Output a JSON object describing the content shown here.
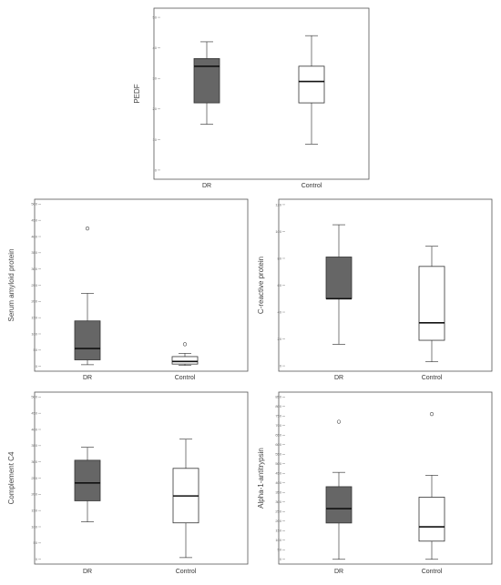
{
  "chart_data": [
    {
      "type": "boxplot",
      "ylabel": "PEDF",
      "categories": [
        "DR",
        "Control"
      ],
      "yticks": [
        0,
        10,
        20,
        30,
        40,
        50
      ],
      "ylim": [
        -3,
        53
      ],
      "series": [
        {
          "category": "DR",
          "min": 15,
          "q1": 22,
          "median": 34,
          "q3": 36.5,
          "max": 42,
          "outliers": [],
          "fill": "#666666"
        },
        {
          "category": "Control",
          "min": 8.5,
          "q1": 22,
          "median": 29,
          "q3": 34,
          "max": 44,
          "outliers": [],
          "fill": "#ffffff"
        }
      ]
    },
    {
      "type": "boxplot",
      "ylabel": "Serum amyloid protein",
      "categories": [
        "DR",
        "Control"
      ],
      "yticks": [
        0,
        50,
        100,
        150,
        200,
        250,
        300,
        350,
        400,
        450,
        500
      ],
      "ylim": [
        -15,
        515
      ],
      "series": [
        {
          "category": "DR",
          "min": 5,
          "q1": 20,
          "median": 55,
          "q3": 140,
          "max": 225,
          "outliers": [
            425
          ],
          "fill": "#666666"
        },
        {
          "category": "Control",
          "min": 3,
          "q1": 7,
          "median": 15,
          "q3": 30,
          "max": 40,
          "outliers": [
            68
          ],
          "fill": "#ffffff"
        }
      ]
    },
    {
      "type": "boxplot",
      "ylabel": "C-reactive protein",
      "categories": [
        "DR",
        "Control"
      ],
      "yticks": [
        0,
        20,
        40,
        60,
        80,
        100,
        120
      ],
      "ylim": [
        -4,
        124
      ],
      "series": [
        {
          "category": "DR",
          "min": 16,
          "q1": 50,
          "median": 50,
          "q3": 81,
          "max": 105,
          "outliers": [],
          "fill": "#666666"
        },
        {
          "category": "Control",
          "min": 3,
          "q1": 19,
          "median": 32,
          "q3": 74,
          "max": 89,
          "outliers": [],
          "fill": "#ffffff"
        }
      ]
    },
    {
      "type": "boxplot",
      "ylabel": "Complement C4",
      "categories": [
        "DR",
        "Control"
      ],
      "yticks": [
        0,
        50,
        100,
        150,
        200,
        250,
        300,
        350,
        400,
        450,
        500
      ],
      "ylim": [
        -15,
        515
      ],
      "series": [
        {
          "category": "DR",
          "min": 115,
          "q1": 180,
          "median": 235,
          "q3": 305,
          "max": 345,
          "outliers": [],
          "fill": "#666666"
        },
        {
          "category": "Control",
          "min": 5,
          "q1": 112,
          "median": 195,
          "q3": 280,
          "max": 370,
          "outliers": [],
          "fill": "#ffffff"
        }
      ]
    },
    {
      "type": "boxplot",
      "ylabel": "Alpha-1-antitrypsin",
      "categories": [
        "DR",
        "Control"
      ],
      "yticks": [
        0,
        50,
        100,
        150,
        200,
        250,
        300,
        350,
        400,
        450,
        500,
        550,
        600,
        650,
        700,
        750,
        800,
        850
      ],
      "ylim": [
        -25,
        875
      ],
      "series": [
        {
          "category": "DR",
          "min": 0,
          "q1": 190,
          "median": 265,
          "q3": 380,
          "max": 455,
          "outliers": [
            720
          ],
          "fill": "#666666"
        },
        {
          "category": "Control",
          "min": 0,
          "q1": 95,
          "median": 170,
          "q3": 325,
          "max": 440,
          "outliers": [
            760
          ],
          "fill": "#ffffff"
        }
      ]
    }
  ]
}
